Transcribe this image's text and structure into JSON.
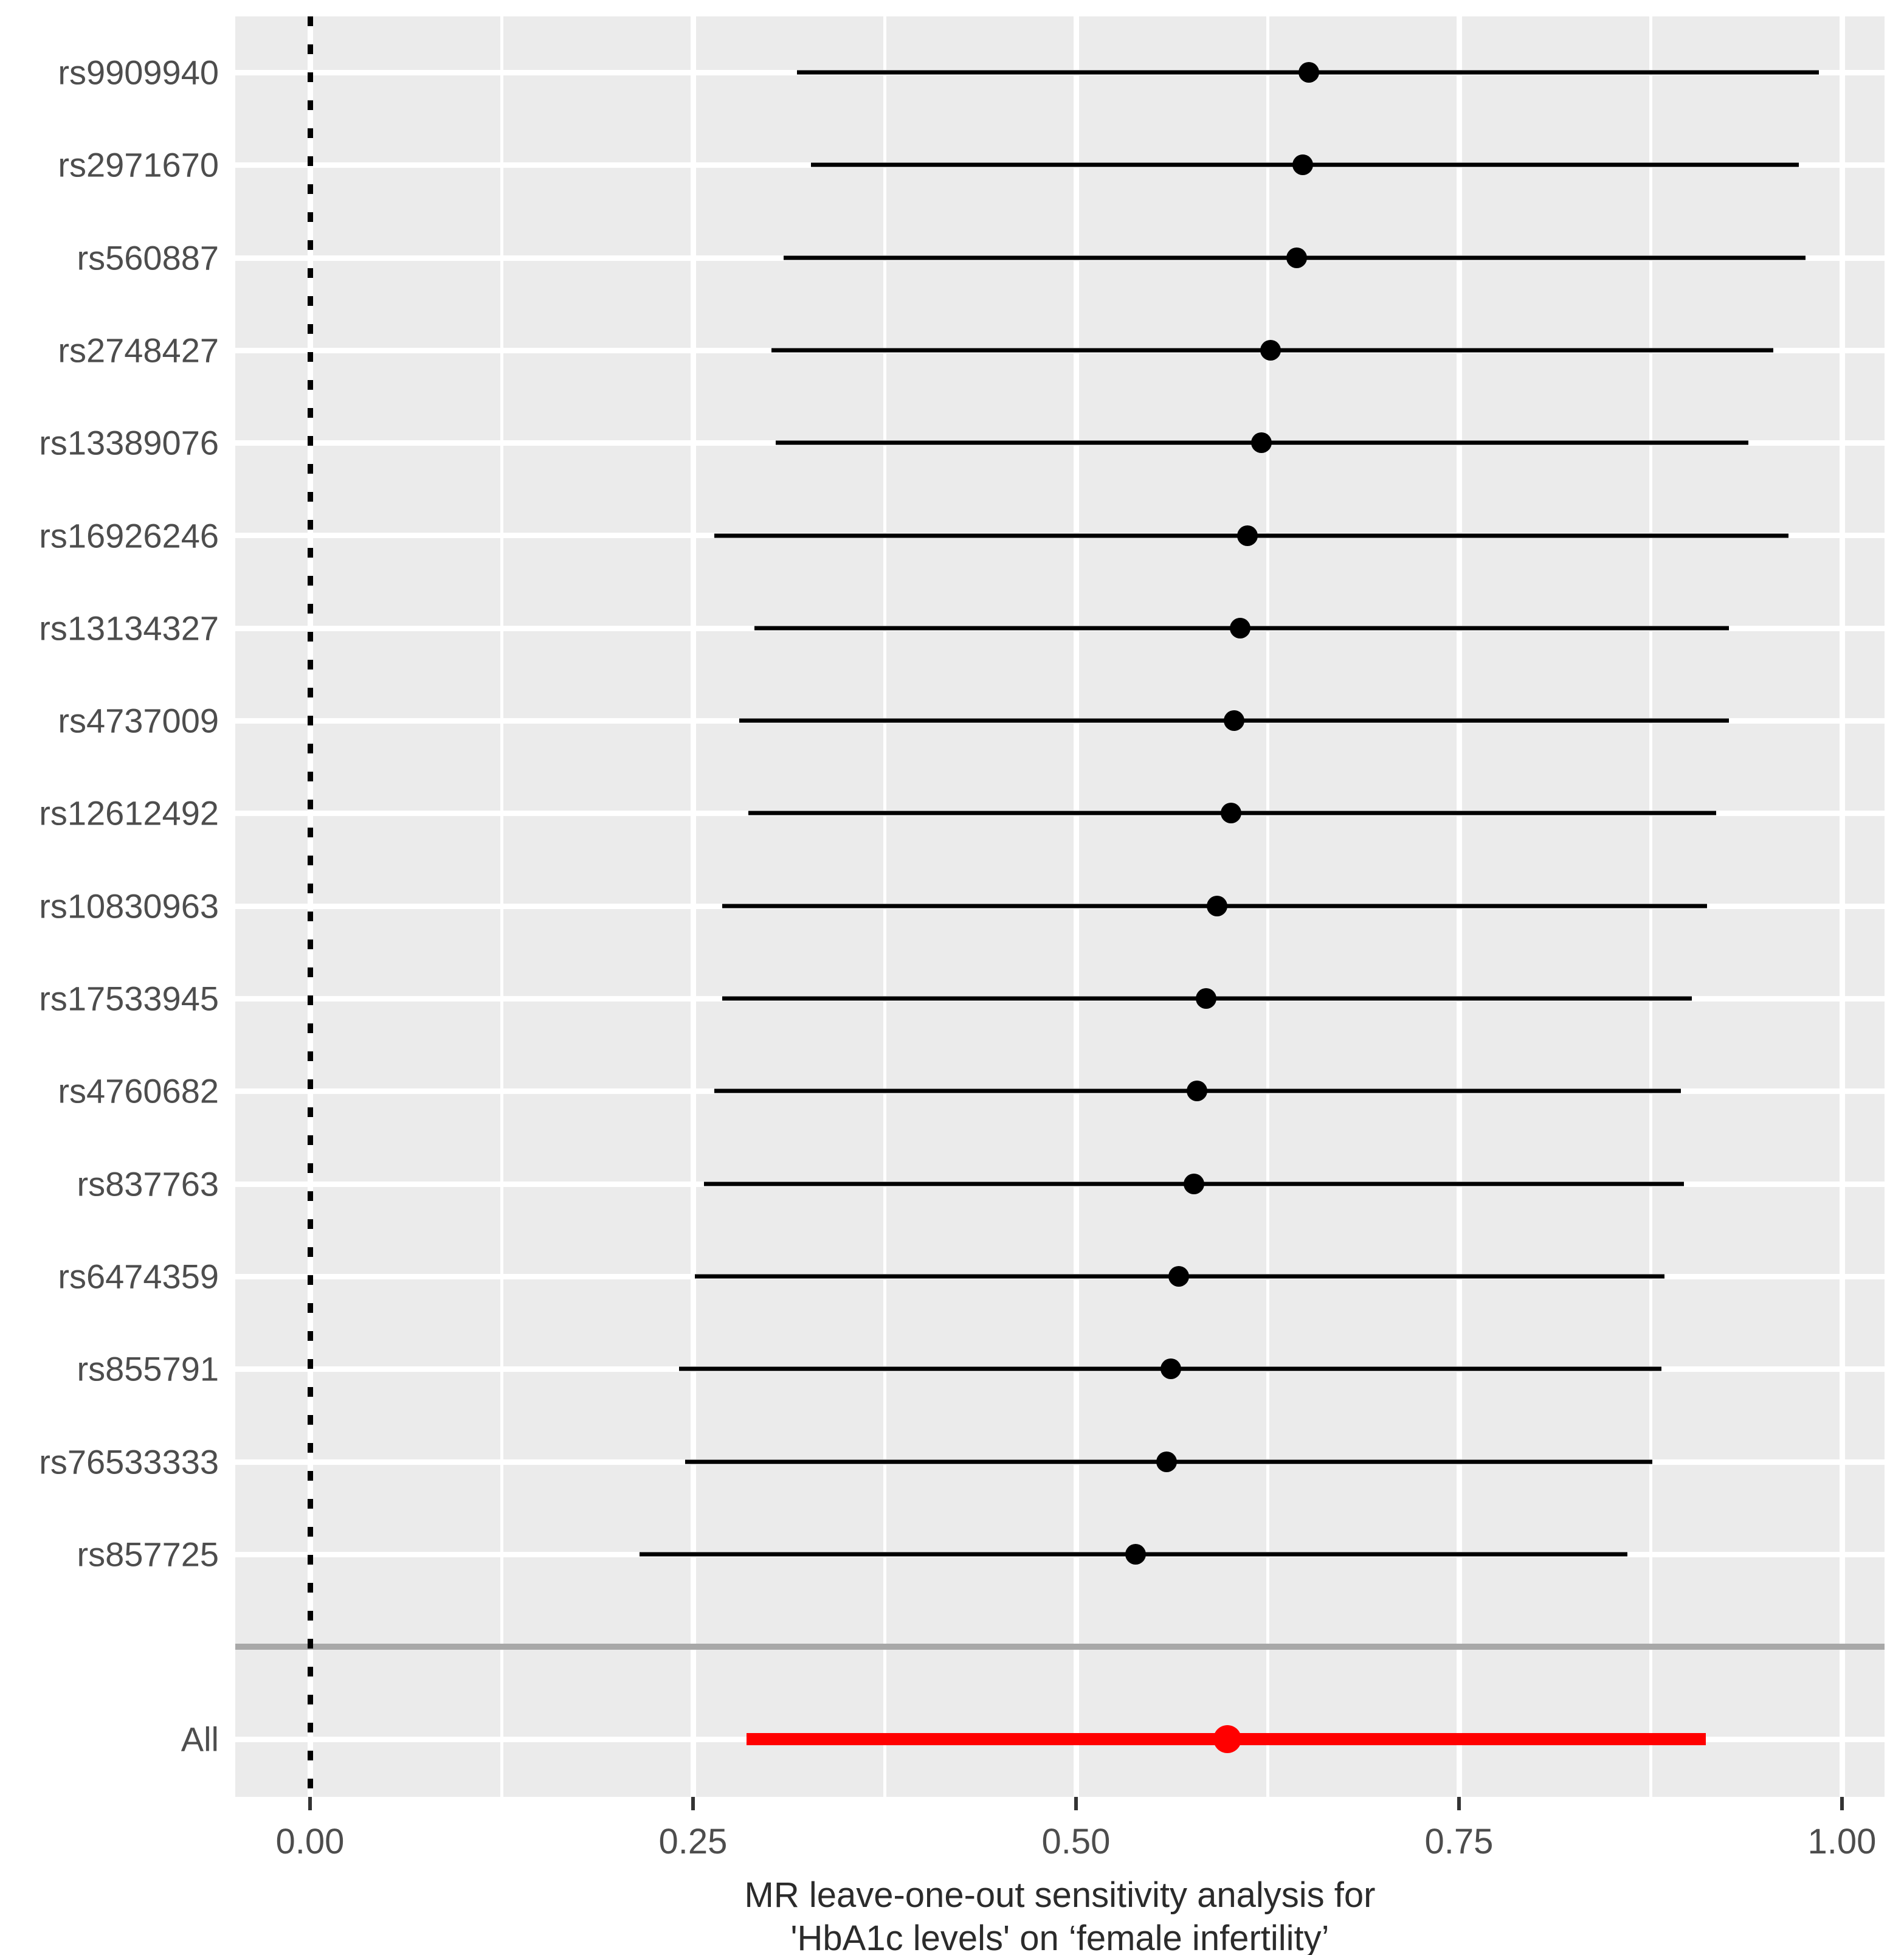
{
  "chart_data": {
    "type": "forest",
    "title_lines": [
      "MR leave-one-out sensitivity analysis for",
      "'HbA1c levels' on ‘female infertility’"
    ],
    "x_tick_values": [
      0,
      0.25,
      0.5,
      0.75,
      1.0
    ],
    "x_tick_labels": [
      "0.00",
      "0.25",
      "0.50",
      "0.75",
      "1.00"
    ],
    "x_minor_gridlines": [
      0.125,
      0.375,
      0.625,
      0.875
    ],
    "xlim": [
      -0.049,
      1.028
    ],
    "zero_reference_line": 0,
    "legend": "none",
    "grid": "on",
    "rows": [
      {
        "label": "rs9909940",
        "type": "snp",
        "estimate": 0.652,
        "lo": 0.318,
        "hi": 0.985
      },
      {
        "label": "rs2971670",
        "type": "snp",
        "estimate": 0.648,
        "lo": 0.327,
        "hi": 0.972
      },
      {
        "label": "rs560887",
        "type": "snp",
        "estimate": 0.644,
        "lo": 0.309,
        "hi": 0.976
      },
      {
        "label": "rs2748427",
        "type": "snp",
        "estimate": 0.627,
        "lo": 0.301,
        "hi": 0.955
      },
      {
        "label": "rs13389076",
        "type": "snp",
        "estimate": 0.621,
        "lo": 0.304,
        "hi": 0.939
      },
      {
        "label": "rs16926246",
        "type": "snp",
        "estimate": 0.612,
        "lo": 0.264,
        "hi": 0.965
      },
      {
        "label": "rs13134327",
        "type": "snp",
        "estimate": 0.607,
        "lo": 0.29,
        "hi": 0.926
      },
      {
        "label": "rs4737009",
        "type": "snp",
        "estimate": 0.603,
        "lo": 0.28,
        "hi": 0.926
      },
      {
        "label": "rs12612492",
        "type": "snp",
        "estimate": 0.601,
        "lo": 0.286,
        "hi": 0.918
      },
      {
        "label": "rs10830963",
        "type": "snp",
        "estimate": 0.592,
        "lo": 0.269,
        "hi": 0.912
      },
      {
        "label": "rs17533945",
        "type": "snp",
        "estimate": 0.585,
        "lo": 0.269,
        "hi": 0.902
      },
      {
        "label": "rs4760682",
        "type": "snp",
        "estimate": 0.579,
        "lo": 0.264,
        "hi": 0.895
      },
      {
        "label": "rs837763",
        "type": "snp",
        "estimate": 0.577,
        "lo": 0.257,
        "hi": 0.897
      },
      {
        "label": "rs6474359",
        "type": "snp",
        "estimate": 0.567,
        "lo": 0.251,
        "hi": 0.884
      },
      {
        "label": "rs855791",
        "type": "snp",
        "estimate": 0.562,
        "lo": 0.241,
        "hi": 0.882
      },
      {
        "label": "rs76533333",
        "type": "snp",
        "estimate": 0.559,
        "lo": 0.245,
        "hi": 0.876
      },
      {
        "label": "rs857725",
        "type": "snp",
        "estimate": 0.539,
        "lo": 0.215,
        "hi": 0.86
      },
      {
        "label": "",
        "type": "separator"
      },
      {
        "label": "All",
        "type": "summary",
        "estimate": 0.599,
        "lo": 0.285,
        "hi": 0.911
      }
    ]
  },
  "colors": {
    "panel_background": "#EBEBEB",
    "gridline": "#FFFFFF",
    "snp_point_and_ci": "#000000",
    "summary_point_and_ci": "#FF0000",
    "separator_line": "#A8A8A8",
    "axis_text": "#4D4D4D",
    "zero_line": "#000000"
  }
}
